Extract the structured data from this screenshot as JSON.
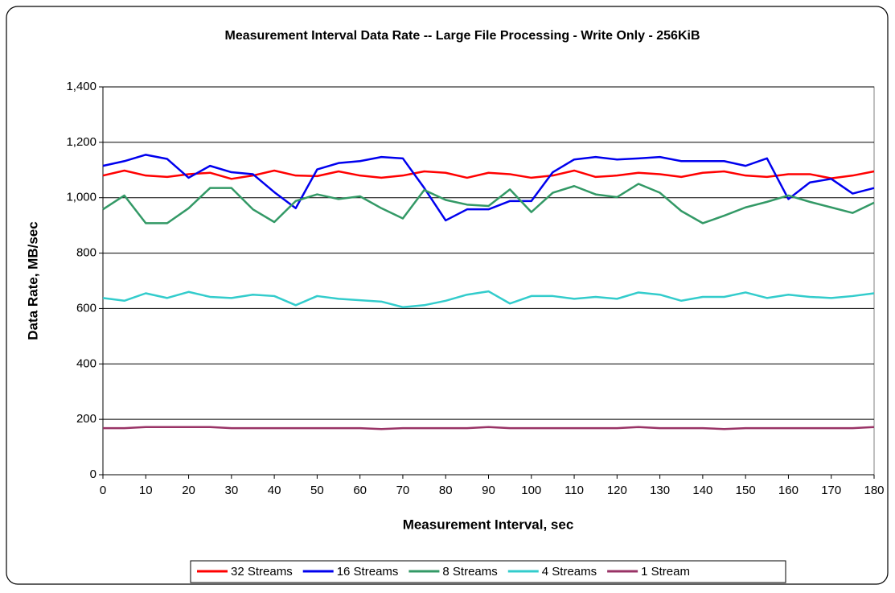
{
  "chart_data": {
    "type": "line",
    "title": "Measurement Interval Data Rate -- Large File Processing - Write Only - 256KiB",
    "x_label": "Measurement Interval, sec",
    "y_label": "Data Rate, MB/sec",
    "x": [
      0,
      5,
      10,
      15,
      20,
      25,
      30,
      35,
      40,
      45,
      50,
      55,
      60,
      65,
      70,
      75,
      80,
      85,
      90,
      95,
      100,
      105,
      110,
      115,
      120,
      125,
      130,
      135,
      140,
      145,
      150,
      155,
      160,
      165,
      170,
      175,
      180
    ],
    "series": [
      {
        "name": "32 Streams",
        "color": "#ff0000",
        "values": [
          1080,
          1098,
          1080,
          1075,
          1085,
          1090,
          1068,
          1080,
          1098,
          1080,
          1078,
          1095,
          1080,
          1072,
          1080,
          1095,
          1090,
          1072,
          1090,
          1085,
          1072,
          1080,
          1098,
          1075,
          1080,
          1090,
          1085,
          1075,
          1090,
          1095,
          1080,
          1075,
          1085,
          1085,
          1070,
          1080,
          1095
        ]
      },
      {
        "name": "16 Streams",
        "color": "#0000ee",
        "values": [
          1115,
          1132,
          1155,
          1140,
          1072,
          1115,
          1092,
          1085,
          1020,
          962,
          1102,
          1125,
          1132,
          1147,
          1142,
          1035,
          918,
          958,
          958,
          988,
          988,
          1092,
          1138,
          1147,
          1138,
          1142,
          1147,
          1132,
          1132,
          1132,
          1115,
          1142,
          995,
          1055,
          1068,
          1015,
          1035
        ]
      },
      {
        "name": "8 Streams",
        "color": "#339966",
        "values": [
          958,
          1008,
          908,
          908,
          962,
          1035,
          1035,
          958,
          912,
          988,
          1012,
          995,
          1005,
          962,
          925,
          1028,
          992,
          975,
          970,
          1030,
          948,
          1018,
          1042,
          1012,
          1002,
          1050,
          1018,
          952,
          908,
          935,
          965,
          985,
          1008,
          985,
          965,
          945,
          982
        ]
      },
      {
        "name": "4 Streams",
        "color": "#33cccc",
        "values": [
          638,
          628,
          655,
          638,
          660,
          642,
          638,
          650,
          645,
          612,
          645,
          635,
          630,
          625,
          605,
          612,
          628,
          650,
          662,
          618,
          645,
          645,
          635,
          642,
          635,
          658,
          650,
          628,
          642,
          642,
          658,
          638,
          650,
          642,
          638,
          645,
          655
        ]
      },
      {
        "name": "1 Stream",
        "color": "#993366",
        "values": [
          168,
          168,
          172,
          172,
          172,
          172,
          168,
          168,
          168,
          168,
          168,
          168,
          168,
          165,
          168,
          168,
          168,
          168,
          172,
          168,
          168,
          168,
          168,
          168,
          168,
          172,
          168,
          168,
          168,
          165,
          168,
          168,
          168,
          168,
          168,
          168,
          172
        ]
      }
    ],
    "xlim": [
      0,
      180
    ],
    "xticks": [
      0,
      10,
      20,
      30,
      40,
      50,
      60,
      70,
      80,
      90,
      100,
      110,
      120,
      130,
      140,
      150,
      160,
      170,
      180
    ],
    "ylim": [
      0,
      1400
    ],
    "yticks": [
      0,
      200,
      400,
      600,
      800,
      {
        "value": 1000,
        "label": "1,000"
      },
      {
        "value": 1200,
        "label": "1,200"
      },
      {
        "value": 1400,
        "label": "1,400"
      }
    ],
    "grid": true,
    "legend": "bottom"
  }
}
